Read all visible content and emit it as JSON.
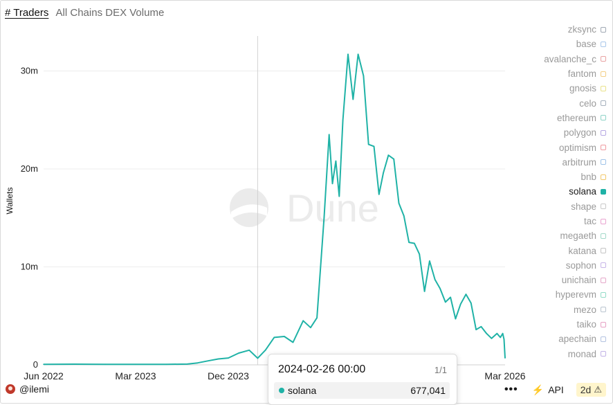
{
  "tabs": [
    {
      "label": "# Traders",
      "active": true
    },
    {
      "label": "All Chains DEX Volume",
      "active": false
    }
  ],
  "watermark": "Dune",
  "legend": [
    {
      "label": "zksync",
      "color": "#9fa8b3",
      "active": false
    },
    {
      "label": "base",
      "color": "#a9c7ea",
      "active": false
    },
    {
      "label": "avalanche_c",
      "color": "#e9a3a3",
      "active": false
    },
    {
      "label": "fantom",
      "color": "#f3cf86",
      "active": false
    },
    {
      "label": "gnosis",
      "color": "#e9e28b",
      "active": false
    },
    {
      "label": "celo",
      "color": "#a6b1bd",
      "active": false
    },
    {
      "label": "ethereum",
      "color": "#8fd3c7",
      "active": false
    },
    {
      "label": "polygon",
      "color": "#b6a8e3",
      "active": false
    },
    {
      "label": "optimism",
      "color": "#ef9aa0",
      "active": false
    },
    {
      "label": "arbitrum",
      "color": "#9ec2e8",
      "active": false
    },
    {
      "label": "bnb",
      "color": "#f2c86b",
      "active": false
    },
    {
      "label": "solana",
      "color": "#1fb2a6",
      "active": true
    },
    {
      "label": "shape",
      "color": "#c9c9c9",
      "active": false
    },
    {
      "label": "tac",
      "color": "#e9a3d0",
      "active": false
    },
    {
      "label": "megaeth",
      "color": "#a3d9c9",
      "active": false
    },
    {
      "label": "katana",
      "color": "#c4c4c4",
      "active": false
    },
    {
      "label": "sophon",
      "color": "#c7b5e8",
      "active": false
    },
    {
      "label": "unichain",
      "color": "#e5a7c9",
      "active": false
    },
    {
      "label": "hyperevm",
      "color": "#93dcc8",
      "active": false
    },
    {
      "label": "mezo",
      "color": "#b9c4cf",
      "active": false
    },
    {
      "label": "taiko",
      "color": "#e6a0c4",
      "active": false
    },
    {
      "label": "apechain",
      "color": "#b3c2e0",
      "active": false
    },
    {
      "label": "monad",
      "color": "#c2b3e6",
      "active": false
    }
  ],
  "footer": {
    "user": "@ilemi",
    "more_label": "•••",
    "api_label": "API",
    "age_badge": "2d",
    "warning_icon": "warning-triangle-icon"
  },
  "tooltip": {
    "title": "2024-02-26 00:00",
    "page": "1/1",
    "series": "solana",
    "value": "677,041"
  },
  "chart_data": {
    "type": "line",
    "xlabel": "",
    "ylabel": "Wallets",
    "ylim": [
      0,
      33000000
    ],
    "yticks": [
      {
        "value": 0,
        "label": "0"
      },
      {
        "value": 10000000,
        "label": "10m"
      },
      {
        "value": 20000000,
        "label": "20m"
      },
      {
        "value": 30000000,
        "label": "30m"
      }
    ],
    "xlim": [
      "2022-06-01",
      "2026-03-01"
    ],
    "xticks": [
      {
        "value": "2022-06-01",
        "label": "Jun 2022"
      },
      {
        "value": "2023-03-01",
        "label": "Mar 2023"
      },
      {
        "value": "2023-12-01",
        "label": "Dec 2023"
      },
      {
        "value": "2026-03-01",
        "label": "Mar 2026"
      }
    ],
    "hover_date": "2024-02-26",
    "series": [
      {
        "name": "solana",
        "color": "#1fb2a6",
        "points": [
          [
            "2022-06-01",
            60000
          ],
          [
            "2022-09-01",
            70000
          ],
          [
            "2022-12-01",
            60000
          ],
          [
            "2023-03-01",
            60000
          ],
          [
            "2023-06-01",
            60000
          ],
          [
            "2023-08-01",
            80000
          ],
          [
            "2023-09-01",
            200000
          ],
          [
            "2023-10-01",
            400000
          ],
          [
            "2023-11-01",
            600000
          ],
          [
            "2023-12-01",
            700000
          ],
          [
            "2024-01-01",
            1200000
          ],
          [
            "2024-02-01",
            1500000
          ],
          [
            "2024-02-26",
            677041
          ],
          [
            "2024-03-20",
            1500000
          ],
          [
            "2024-04-15",
            2800000
          ],
          [
            "2024-05-15",
            2900000
          ],
          [
            "2024-06-10",
            2300000
          ],
          [
            "2024-07-10",
            4500000
          ],
          [
            "2024-08-01",
            3800000
          ],
          [
            "2024-08-20",
            4800000
          ],
          [
            "2024-09-10",
            15000000
          ],
          [
            "2024-09-25",
            23500000
          ],
          [
            "2024-10-05",
            18500000
          ],
          [
            "2024-10-15",
            20800000
          ],
          [
            "2024-10-25",
            17200000
          ],
          [
            "2024-11-05",
            25000000
          ],
          [
            "2024-11-20",
            31700000
          ],
          [
            "2024-12-05",
            27100000
          ],
          [
            "2024-12-20",
            31700000
          ],
          [
            "2025-01-05",
            29500000
          ],
          [
            "2025-01-20",
            22500000
          ],
          [
            "2025-02-05",
            22300000
          ],
          [
            "2025-02-20",
            17400000
          ],
          [
            "2025-03-05",
            19600000
          ],
          [
            "2025-03-20",
            21400000
          ],
          [
            "2025-04-05",
            21000000
          ],
          [
            "2025-04-20",
            16500000
          ],
          [
            "2025-05-05",
            15200000
          ],
          [
            "2025-05-20",
            12500000
          ],
          [
            "2025-06-05",
            12400000
          ],
          [
            "2025-06-20",
            11300000
          ],
          [
            "2025-07-05",
            7500000
          ],
          [
            "2025-07-20",
            10600000
          ],
          [
            "2025-08-05",
            8700000
          ],
          [
            "2025-08-20",
            7800000
          ],
          [
            "2025-09-05",
            6400000
          ],
          [
            "2025-09-20",
            6900000
          ],
          [
            "2025-10-05",
            4700000
          ],
          [
            "2025-10-20",
            6200000
          ],
          [
            "2025-11-05",
            7200000
          ],
          [
            "2025-11-20",
            6300000
          ],
          [
            "2025-12-05",
            3600000
          ],
          [
            "2025-12-20",
            3900000
          ],
          [
            "2026-01-05",
            3200000
          ],
          [
            "2026-01-20",
            2700000
          ],
          [
            "2026-02-05",
            3200000
          ],
          [
            "2026-02-15",
            2800000
          ],
          [
            "2026-02-22",
            3200000
          ],
          [
            "2026-02-26",
            2600000
          ],
          [
            "2026-03-01",
            700000
          ]
        ]
      }
    ]
  }
}
